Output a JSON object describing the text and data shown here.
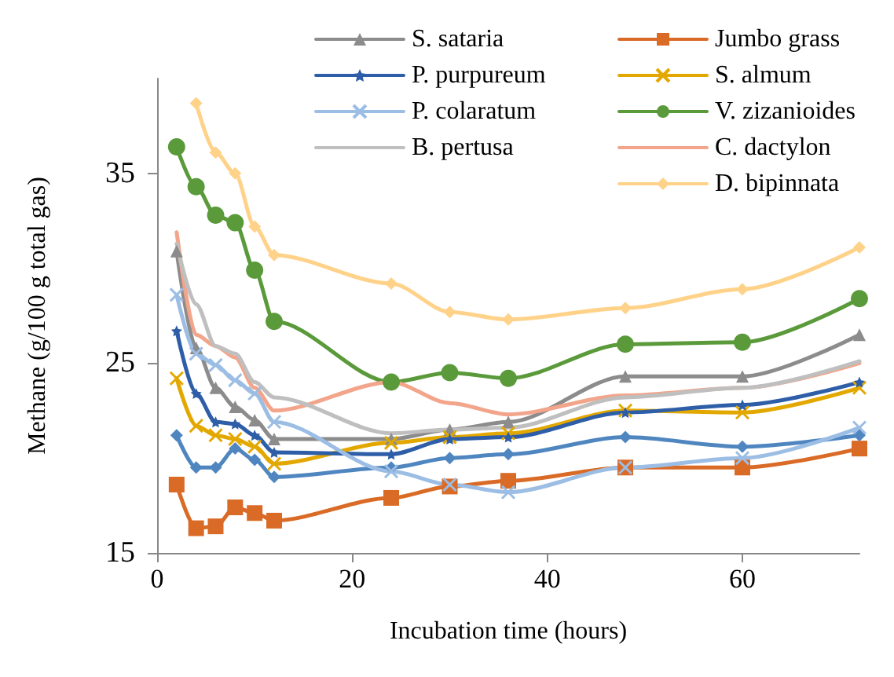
{
  "chart_data": {
    "type": "line",
    "xlabel": "Incubation time (hours)",
    "ylabel": "Methane (g/100 g total gas)",
    "x": [
      2,
      4,
      6,
      8,
      10,
      12,
      24,
      30,
      36,
      48,
      60,
      72
    ],
    "xlim": [
      0,
      72
    ],
    "xticks": [
      0,
      20,
      40,
      60
    ],
    "ylim": [
      15,
      40
    ],
    "yticks": [
      15,
      25,
      35
    ],
    "grid": false,
    "legend": "top right",
    "series": [
      {
        "color": "#4f86c0",
        "marker": "diamond",
        "values": [
          21.2,
          19.5,
          19.5,
          20.5,
          19.9,
          19.0,
          19.5,
          20.0,
          20.2,
          21.1,
          20.6,
          21.2
        ]
      },
      {
        "name": "Jumbo grass",
        "color": "#d96b27",
        "marker": "square",
        "values": [
          18.6,
          16.3,
          16.4,
          17.4,
          17.1,
          16.7,
          17.9,
          18.5,
          18.8,
          19.5,
          19.5,
          20.5
        ]
      },
      {
        "name": "S. sataria",
        "color": "#8c8c8c",
        "marker": "triangle",
        "values": [
          30.9,
          25.8,
          23.7,
          22.7,
          22.0,
          21.0,
          21.0,
          21.5,
          21.9,
          24.3,
          24.3,
          26.5
        ]
      },
      {
        "name": "S. almum",
        "color": "#e3a800",
        "marker": "cross",
        "values": [
          24.2,
          21.7,
          21.2,
          21.0,
          20.6,
          19.7,
          20.8,
          21.1,
          21.3,
          22.5,
          22.4,
          23.7
        ]
      },
      {
        "name": "P. purpureum",
        "color": "#2e5ea8",
        "marker": "star",
        "values": [
          26.7,
          23.4,
          21.9,
          21.8,
          21.2,
          20.3,
          20.2,
          21.0,
          21.1,
          22.4,
          22.8,
          24.0
        ]
      },
      {
        "name": "V. zizanioides",
        "color": "#5a9a3a",
        "marker": "circle",
        "values": [
          36.4,
          34.3,
          32.8,
          32.4,
          29.9,
          27.2,
          24.0,
          24.5,
          24.2,
          26.0,
          26.1,
          28.4
        ]
      },
      {
        "name": "P. colaratum",
        "color": "#9cbde4",
        "marker": "cross",
        "values": [
          28.6,
          25.5,
          24.9,
          24.1,
          23.4,
          21.9,
          19.3,
          18.6,
          18.2,
          19.5,
          20.0,
          21.6
        ]
      },
      {
        "name": "C. dactylon",
        "color": "#f2a58a",
        "marker": "none",
        "values": [
          31.9,
          26.5,
          25.9,
          25.3,
          23.7,
          22.5,
          24.0,
          22.9,
          22.3,
          23.3,
          23.7,
          25.0
        ]
      },
      {
        "name": "B. pertusa",
        "color": "#bfbfbf",
        "marker": "none",
        "values": [
          31.3,
          28.1,
          25.9,
          25.5,
          24.0,
          23.2,
          21.3,
          21.5,
          21.6,
          23.2,
          23.7,
          25.1
        ]
      },
      {
        "name": "D. bipinnata",
        "color": "#ffd28a",
        "marker": "diamond",
        "values": [
          null,
          38.7,
          36.1,
          35.0,
          32.2,
          30.7,
          29.2,
          27.7,
          27.3,
          27.9,
          28.9,
          31.1
        ]
      }
    ]
  }
}
